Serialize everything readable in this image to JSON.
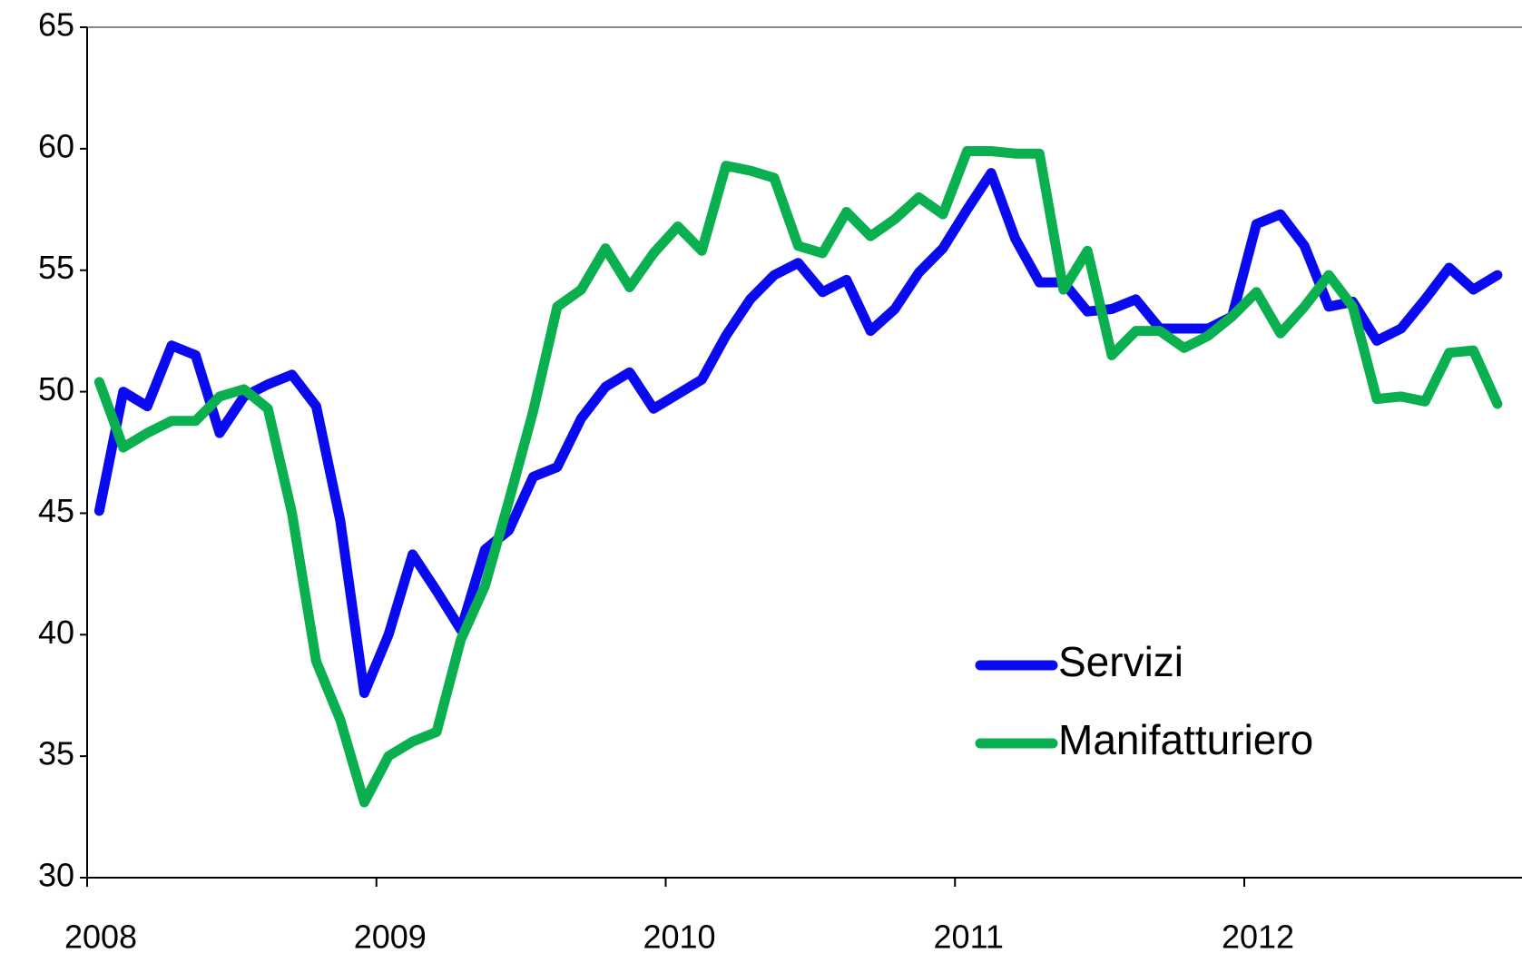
{
  "chart_data": {
    "type": "line",
    "x": [
      2008.042,
      2008.125,
      2008.208,
      2008.292,
      2008.375,
      2008.458,
      2008.542,
      2008.625,
      2008.708,
      2008.792,
      2008.875,
      2008.958,
      2009.042,
      2009.125,
      2009.208,
      2009.292,
      2009.375,
      2009.458,
      2009.542,
      2009.625,
      2009.708,
      2009.792,
      2009.875,
      2009.958,
      2010.042,
      2010.125,
      2010.208,
      2010.292,
      2010.375,
      2010.458,
      2010.542,
      2010.625,
      2010.708,
      2010.792,
      2010.875,
      2010.958,
      2011.042,
      2011.125,
      2011.208,
      2011.292,
      2011.375,
      2011.458,
      2011.542,
      2011.625,
      2011.708,
      2011.792,
      2011.875,
      2011.958,
      2012.042,
      2012.125,
      2012.208,
      2012.292,
      2012.375,
      2012.458,
      2012.542,
      2012.625,
      2012.708,
      2012.792,
      2012.875
    ],
    "series": [
      {
        "name": "Servizi",
        "color": "#0a0af0",
        "values": [
          45.1,
          50.0,
          49.4,
          51.9,
          51.5,
          48.3,
          49.8,
          50.3,
          50.7,
          49.4,
          44.7,
          37.6,
          40.0,
          43.3,
          41.8,
          40.2,
          43.5,
          44.3,
          46.5,
          46.9,
          48.9,
          50.2,
          50.8,
          49.3,
          49.9,
          50.5,
          52.3,
          53.8,
          54.8,
          55.3,
          54.1,
          54.6,
          52.5,
          53.4,
          54.9,
          55.9,
          57.5,
          59.0,
          56.3,
          54.5,
          54.5,
          53.3,
          53.4,
          53.8,
          52.6,
          52.6,
          52.6,
          53.1,
          56.9,
          57.3,
          56.0,
          53.5,
          53.7,
          52.1,
          52.6,
          53.8,
          55.1,
          54.2,
          54.8
        ]
      },
      {
        "name": "Manifatturiero",
        "color": "#0ab04f",
        "values": [
          50.4,
          47.7,
          48.3,
          48.8,
          48.8,
          49.8,
          50.1,
          49.3,
          45.0,
          38.9,
          36.5,
          33.1,
          35.0,
          35.6,
          36.0,
          39.8,
          42.0,
          45.5,
          49.2,
          53.5,
          54.2,
          55.9,
          54.3,
          55.7,
          56.8,
          55.8,
          59.3,
          59.1,
          58.8,
          56.0,
          55.7,
          57.4,
          56.4,
          57.1,
          58.0,
          57.3,
          59.9,
          59.9,
          59.8,
          59.8,
          54.2,
          55.8,
          51.5,
          52.5,
          52.5,
          51.8,
          52.3,
          53.1,
          54.1,
          52.4,
          53.5,
          54.8,
          53.5,
          49.7,
          49.8,
          49.6,
          51.6,
          51.7,
          49.5
        ]
      }
    ],
    "xlim": [
      2008,
      2012.96
    ],
    "xticks": [
      2008,
      2009,
      2010,
      2011,
      2012
    ],
    "ylim": [
      30,
      65
    ],
    "yticks": [
      30,
      35,
      40,
      45,
      50,
      55,
      60,
      65
    ],
    "grid": false,
    "legend": "lower right"
  }
}
